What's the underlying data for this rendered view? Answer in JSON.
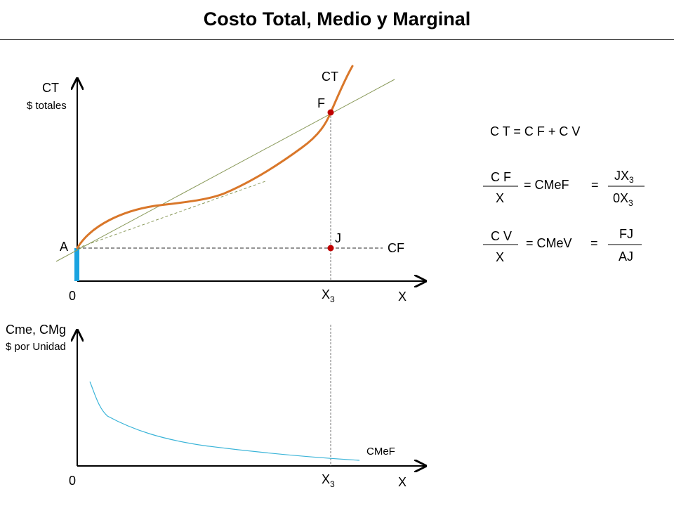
{
  "title": "Costo Total, Medio y Marginal",
  "top_chart": {
    "y_label": "CT",
    "y_sublabel": "$ totales",
    "x_label": "X",
    "origin": "0",
    "x3_main": "X",
    "x3_sub": "3",
    "curve_label": "CT",
    "point_A": "A",
    "point_F": "F",
    "point_J": "J",
    "cf_label": "CF"
  },
  "bottom_chart": {
    "y_label": "Cme, CMg",
    "y_sublabel": "$ por Unidad",
    "x_label": "X",
    "origin": "0",
    "x3_main": "X",
    "x3_sub": "3",
    "curve_label": "CMeF"
  },
  "equations": {
    "eq1": "C T = C F + C V",
    "cf_num": "C F",
    "cf_den": "X",
    "cmef_eq": "=  CMeF",
    "eq_sign1": "=",
    "jx_main": "JX",
    "jx_sub": "3",
    "ox_main": "0X",
    "ox_sub": "3",
    "cv_num": "C V",
    "cv_den": "X",
    "cmev_eq": "=  CMeV",
    "eq_sign2": "=",
    "fj": "FJ",
    "aj": "AJ"
  },
  "colors": {
    "ct_curve": "#d9772a",
    "tangent_line": "#8a9a5b",
    "fixed_cost_bar": "#1aa3e0",
    "cmef_curve": "#3ab4d8",
    "point": "#c00000"
  }
}
